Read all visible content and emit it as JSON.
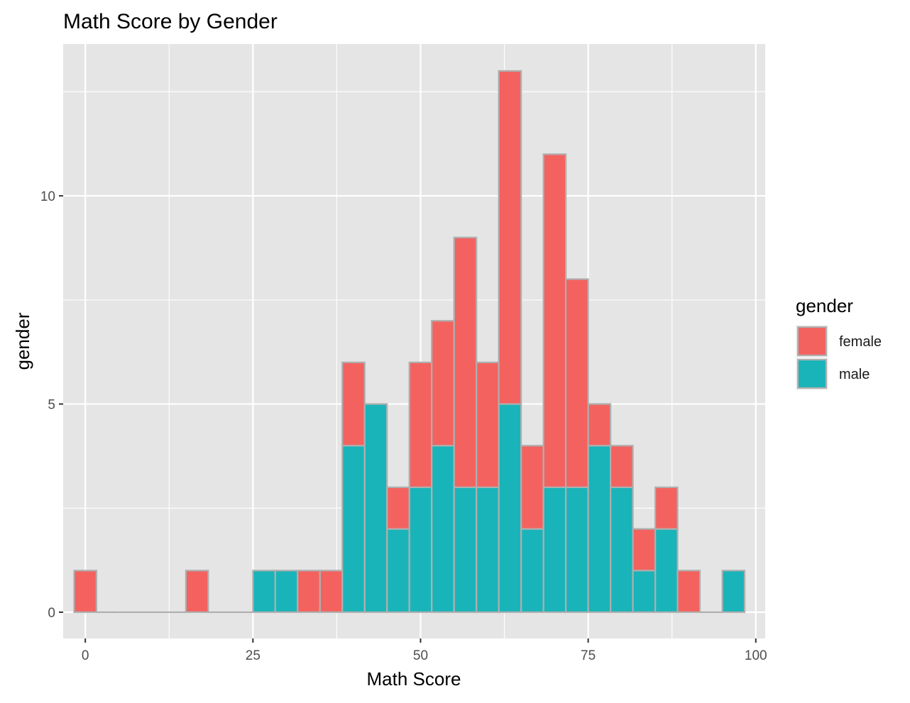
{
  "chart_data": {
    "type": "bar",
    "stacked": true,
    "title": "Math Score by Gender",
    "xlabel": "Math Score",
    "ylabel": "gender",
    "xlim": [
      -3.3,
      101.4
    ],
    "ylim": [
      0,
      13
    ],
    "x_ticks": [
      0,
      25,
      50,
      75,
      100
    ],
    "x_tick_labels": [
      "0",
      "25",
      "50",
      "75",
      "100"
    ],
    "y_ticks": [
      0,
      5,
      10
    ],
    "y_tick_labels": [
      "0",
      "5",
      "10"
    ],
    "grid": true,
    "legend_position": "right",
    "legend_title": "gender",
    "bin_width": 3.33,
    "bin_centers": [
      0,
      3.33,
      6.67,
      10,
      13.33,
      16.67,
      20,
      23.33,
      26.67,
      30,
      33.33,
      36.67,
      40,
      43.33,
      46.67,
      50,
      53.33,
      56.67,
      60,
      63.33,
      66.67,
      70,
      73.33,
      76.67,
      80,
      83.33,
      86.67,
      90,
      93.33,
      96.67
    ],
    "series": [
      {
        "name": "male",
        "color": "#19B4B9",
        "values": [
          0,
          0,
          0,
          0,
          0,
          0,
          0,
          0,
          1,
          1,
          0,
          0,
          4,
          5,
          2,
          3,
          4,
          3,
          3,
          5,
          2,
          3,
          3,
          4,
          3,
          1,
          2,
          0,
          0,
          1
        ]
      },
      {
        "name": "female",
        "color": "#F3625F",
        "values": [
          1,
          0,
          0,
          0,
          0,
          1,
          0,
          0,
          0,
          0,
          1,
          1,
          2,
          0,
          1,
          3,
          3,
          6,
          3,
          8,
          2,
          8,
          5,
          1,
          1,
          1,
          1,
          1,
          0,
          0
        ]
      }
    ],
    "legend_entries": [
      {
        "label": "female",
        "color": "#F3625F"
      },
      {
        "label": "male",
        "color": "#19B4B9"
      }
    ],
    "colors": {
      "panel_background": "#E5E5E5",
      "grid_major": "#FFFFFF",
      "bar_outline": "#AFAFAF"
    }
  }
}
